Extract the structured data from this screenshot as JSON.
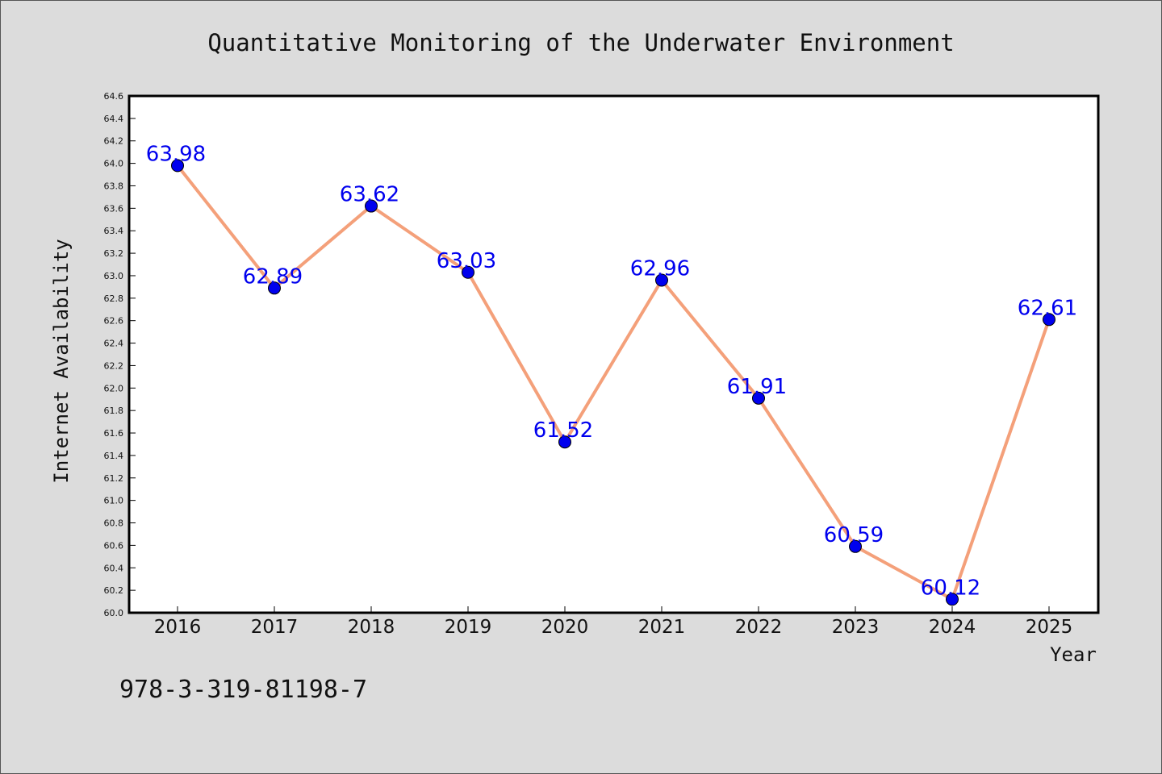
{
  "chart_data": {
    "type": "line",
    "title": "Quantitative Monitoring of the Underwater Environment",
    "xlabel": "Year",
    "ylabel": "Internet Availability",
    "categories": [
      "2016",
      "2017",
      "2018",
      "2019",
      "2020",
      "2021",
      "2022",
      "2023",
      "2024",
      "2025"
    ],
    "values": [
      63.98,
      62.89,
      63.62,
      63.03,
      61.52,
      62.96,
      61.91,
      60.59,
      60.12,
      62.61
    ],
    "data_labels": [
      "63.98",
      "62.89",
      "63.62",
      "63.03",
      "61.52",
      "62.96",
      "61.91",
      "60.59",
      "60.12",
      "62.61"
    ],
    "ylim": [
      60.0,
      64.6
    ],
    "y_ticks": [
      "60.0",
      "60.2",
      "60.4",
      "60.6",
      "60.8",
      "61.0",
      "61.2",
      "61.4",
      "61.6",
      "61.8",
      "62.0",
      "62.2",
      "62.4",
      "62.6",
      "62.8",
      "63.0",
      "63.2",
      "63.4",
      "63.6",
      "63.8",
      "64.0",
      "64.2",
      "64.4",
      "64.6"
    ],
    "grid": false,
    "line_color": "#f4a07a",
    "marker_color": "#0000ee",
    "label_color": "#0000ee"
  },
  "footer": {
    "isbn": "978-3-319-81198-7"
  }
}
